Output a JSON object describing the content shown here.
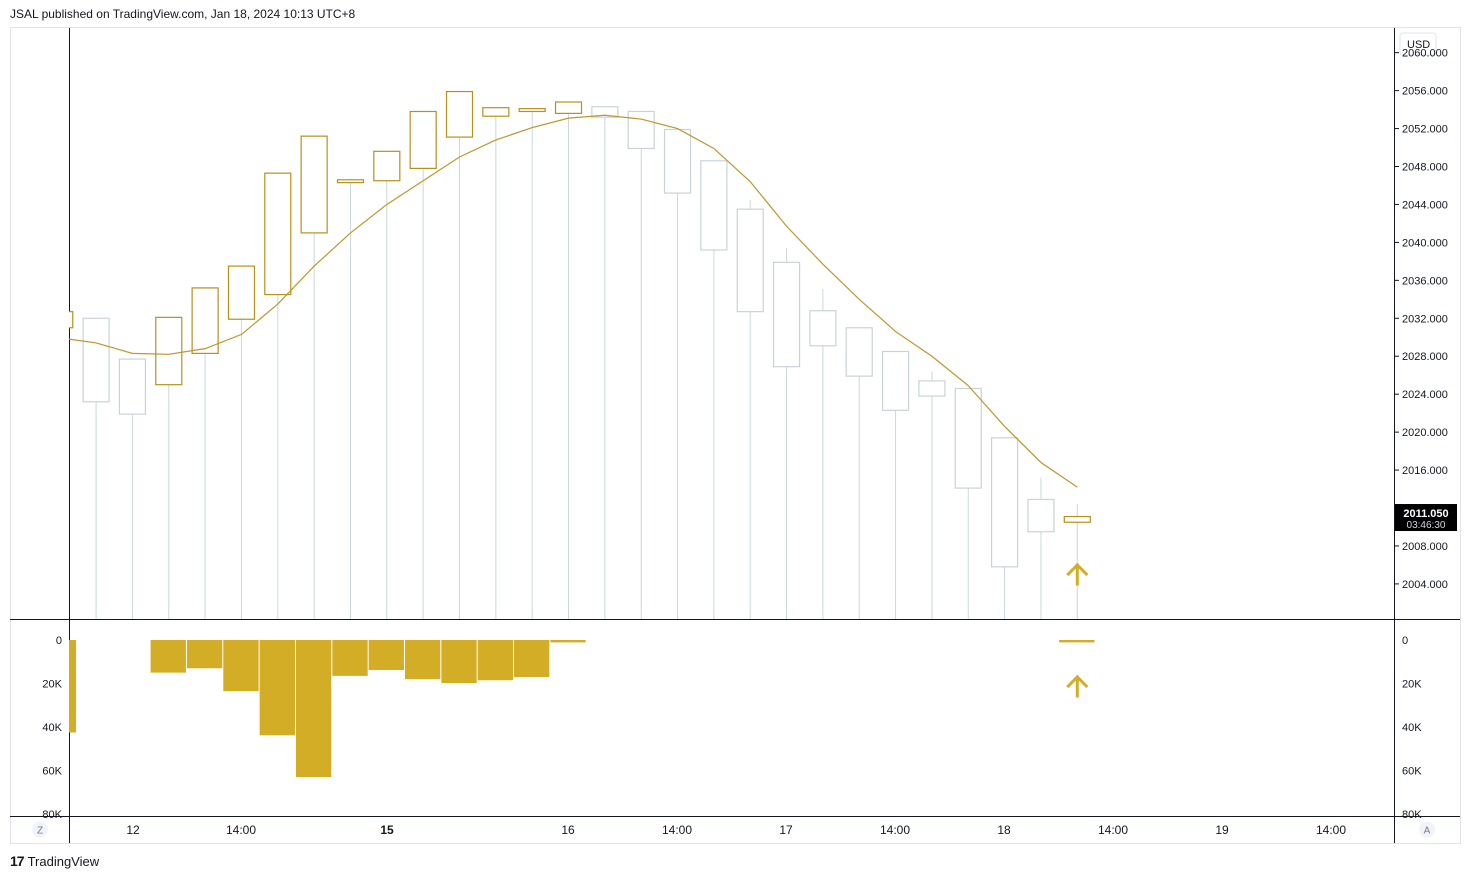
{
  "header": {
    "published_text": "JSAL published on TradingView.com, Jan 18, 2024 10:13 UTC+8"
  },
  "footer": {
    "brand": "TradingView",
    "logo_glyph": "17"
  },
  "colors": {
    "bull": "#b8901c",
    "bear": "#c9d3d7",
    "wick": "#c9d8dc",
    "ma": "#c1952c",
    "volume": "#d4ad27",
    "marker": "#d4ad27",
    "price_tag_bg": "#000000"
  },
  "chart_data": [
    {
      "type": "candlestick",
      "currency_label": "USD",
      "y_ticks": [
        "2060.000",
        "2056.000",
        "2052.000",
        "2048.000",
        "2044.000",
        "2040.000",
        "2036.000",
        "2032.000",
        "2028.000",
        "2024.000",
        "2020.000",
        "2016.000",
        "2012.000",
        "2008.000",
        "2004.000"
      ],
      "ylim": [
        2000.3,
        2062.6
      ],
      "last_price": "2011.050",
      "countdown": "03:46:30",
      "candles": [
        {
          "o": 2031.0,
          "c": 2032.7,
          "h": 2032.7,
          "l": 2031.0
        },
        {
          "o": 2032.0,
          "c": 2023.2,
          "h": 2032.0,
          "l": 2000.3
        },
        {
          "o": 2027.7,
          "c": 2021.9,
          "h": 2027.7,
          "l": 2000.3
        },
        {
          "o": 2025.0,
          "c": 2032.1,
          "h": 2032.1,
          "l": 2000.3
        },
        {
          "o": 2028.3,
          "c": 2035.2,
          "h": 2035.2,
          "l": 2000.3
        },
        {
          "o": 2031.9,
          "c": 2037.5,
          "h": 2037.5,
          "l": 2000.3
        },
        {
          "o": 2034.5,
          "c": 2047.3,
          "h": 2047.3,
          "l": 2000.3
        },
        {
          "o": 2041.0,
          "c": 2051.2,
          "h": 2051.2,
          "l": 2000.3
        },
        {
          "o": 2046.3,
          "c": 2046.6,
          "h": 2046.6,
          "l": 2000.3
        },
        {
          "o": 2046.5,
          "c": 2049.6,
          "h": 2049.6,
          "l": 2000.3
        },
        {
          "o": 2047.8,
          "c": 2053.8,
          "h": 2053.8,
          "l": 2000.3
        },
        {
          "o": 2051.1,
          "c": 2055.9,
          "h": 2055.9,
          "l": 2000.3
        },
        {
          "o": 2053.3,
          "c": 2054.2,
          "h": 2054.2,
          "l": 2000.3
        },
        {
          "o": 2053.8,
          "c": 2054.1,
          "h": 2054.1,
          "l": 2000.3
        },
        {
          "o": 2053.6,
          "c": 2054.8,
          "h": 2054.8,
          "l": 2000.3
        },
        {
          "o": 2054.3,
          "c": 2053.2,
          "h": 2054.3,
          "l": 2000.3
        },
        {
          "o": 2053.8,
          "c": 2049.9,
          "h": 2053.8,
          "l": 2000.3
        },
        {
          "o": 2051.9,
          "c": 2045.2,
          "h": 2051.9,
          "l": 2000.3
        },
        {
          "o": 2048.6,
          "c": 2039.2,
          "h": 2048.6,
          "l": 2000.3
        },
        {
          "o": 2043.5,
          "c": 2032.7,
          "h": 2044.5,
          "l": 2000.3
        },
        {
          "o": 2037.9,
          "c": 2026.9,
          "h": 2039.4,
          "l": 2000.3
        },
        {
          "o": 2032.8,
          "c": 2029.1,
          "h": 2035.1,
          "l": 2000.3
        },
        {
          "o": 2031.0,
          "c": 2025.9,
          "h": 2031.0,
          "l": 2000.3
        },
        {
          "o": 2028.5,
          "c": 2022.3,
          "h": 2028.5,
          "l": 2000.3
        },
        {
          "o": 2025.4,
          "c": 2023.8,
          "h": 2026.4,
          "l": 2000.3
        },
        {
          "o": 2024.6,
          "c": 2014.1,
          "h": 2024.6,
          "l": 2000.3
        },
        {
          "o": 2019.4,
          "c": 2005.8,
          "h": 2019.4,
          "l": 2000.3
        },
        {
          "o": 2012.9,
          "c": 2009.5,
          "h": 2015.2,
          "l": 2000.3
        },
        {
          "o": 2010.5,
          "c": 2011.1,
          "h": 2012.4,
          "l": 2000.3
        }
      ],
      "moving_average": [
        2029.8,
        2029.4,
        2028.3,
        2028.2,
        2028.8,
        2030.3,
        2033.5,
        2037.5,
        2041.0,
        2044.0,
        2046.5,
        2049.0,
        2050.8,
        2052.1,
        2053.1,
        2053.4,
        2053.0,
        2052.0,
        2049.9,
        2046.4,
        2041.7,
        2037.7,
        2034.0,
        2030.6,
        2028.0,
        2024.9,
        2020.6,
        2016.8,
        2014.2
      ],
      "marker": "arrow-up"
    },
    {
      "type": "bar",
      "y_ticks": [
        "0",
        "20K",
        "40K",
        "60K",
        "80K"
      ],
      "ylim": [
        0,
        80000
      ],
      "inverted": true,
      "values": [
        42500,
        0,
        0,
        15000,
        13000,
        23500,
        43800,
        63000,
        16500,
        13800,
        18000,
        19800,
        18500,
        17000,
        1100,
        0,
        0,
        0,
        0,
        0,
        0,
        0,
        0,
        0,
        0,
        0,
        0,
        0,
        1100
      ],
      "marker": "arrow-up"
    }
  ],
  "time_axis": {
    "left_button": "Z",
    "right_button": "A",
    "labels": [
      {
        "text": "12",
        "bold": false
      },
      {
        "text": "14:00",
        "bold": false
      },
      {
        "text": "15",
        "bold": true
      },
      {
        "text": "16",
        "bold": false
      },
      {
        "text": "14:00",
        "bold": false
      },
      {
        "text": "17",
        "bold": false
      },
      {
        "text": "14:00",
        "bold": false
      },
      {
        "text": "18",
        "bold": false
      },
      {
        "text": "14:00",
        "bold": false
      },
      {
        "text": "19",
        "bold": false
      },
      {
        "text": "14:00",
        "bold": false
      }
    ]
  }
}
